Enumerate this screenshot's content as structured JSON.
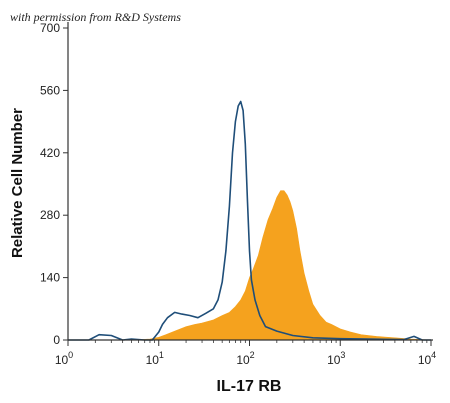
{
  "watermark": "with permission from R&D Systems",
  "chart_data": {
    "type": "area",
    "xlabel": "IL-17 RB",
    "ylabel": "Relative Cell Number",
    "x_scale": "log",
    "xlim": [
      1,
      10000
    ],
    "ylim": [
      0,
      700
    ],
    "y_ticks": [
      0,
      140,
      280,
      420,
      560,
      700
    ],
    "x_ticks": [
      {
        "value": 1,
        "base": "10",
        "exp": "0"
      },
      {
        "value": 10,
        "base": "10",
        "exp": "1"
      },
      {
        "value": 100,
        "base": "10",
        "exp": "2"
      },
      {
        "value": 1000,
        "base": "10",
        "exp": "3"
      },
      {
        "value": 10000,
        "base": "10",
        "exp": "4"
      }
    ],
    "grid": false,
    "legend": "none",
    "series": [
      {
        "style": "outline",
        "color": "#1f4e79",
        "x": [
          1,
          1.7,
          2.2,
          3,
          4,
          5,
          7,
          8.5,
          10,
          11,
          12.5,
          15,
          18,
          22,
          27,
          33,
          40,
          45,
          50,
          55,
          60,
          65,
          70,
          75,
          80,
          85,
          90,
          95,
          100,
          105,
          115,
          130,
          150,
          200,
          300,
          500,
          1000,
          2000,
          5000,
          6500,
          8000,
          10000
        ],
        "y": [
          0,
          0,
          12,
          10,
          0,
          2,
          0,
          0,
          18,
          35,
          50,
          62,
          58,
          55,
          50,
          60,
          70,
          90,
          130,
          200,
          300,
          420,
          490,
          525,
          535,
          515,
          440,
          310,
          200,
          135,
          90,
          55,
          30,
          20,
          10,
          5,
          3,
          2,
          1,
          8,
          0,
          0
        ]
      },
      {
        "style": "filled",
        "color": "#f5a21e",
        "x": [
          1,
          5,
          8,
          10,
          12,
          15,
          20,
          25,
          30,
          40,
          50,
          60,
          70,
          80,
          90,
          100,
          110,
          125,
          140,
          160,
          180,
          200,
          220,
          240,
          260,
          280,
          300,
          330,
          360,
          400,
          450,
          500,
          600,
          700,
          800,
          1000,
          1300,
          1700,
          2500,
          4000,
          6000,
          10000
        ],
        "y": [
          0,
          0,
          2,
          6,
          12,
          20,
          30,
          35,
          38,
          45,
          55,
          62,
          75,
          90,
          110,
          140,
          160,
          190,
          230,
          270,
          295,
          320,
          335,
          335,
          325,
          310,
          290,
          250,
          200,
          150,
          110,
          80,
          55,
          40,
          35,
          25,
          18,
          12,
          8,
          5,
          2,
          0
        ]
      }
    ]
  }
}
